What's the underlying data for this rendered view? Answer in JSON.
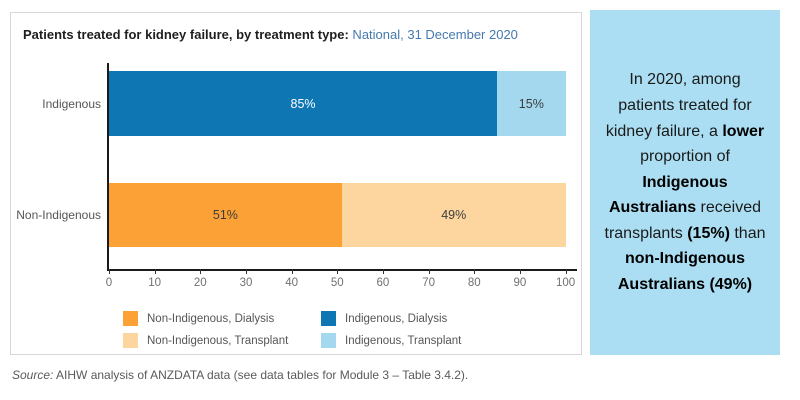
{
  "card": {
    "title": "Patients treated for kidney failure, by treatment type:",
    "title_period": " National, 31 December 2020"
  },
  "chart_data": {
    "type": "bar",
    "orientation": "horizontal",
    "stacked": true,
    "unit": "percent",
    "title": "Patients treated for kidney failure, by treatment type: National, 31 December 2020",
    "axis": {
      "min": 0,
      "max": 102.5,
      "ticks": [
        0,
        10,
        20,
        30,
        40,
        50,
        60,
        70,
        80,
        90,
        100
      ]
    },
    "grid": false,
    "categories": [
      "Indigenous",
      "Non-Indigenous"
    ],
    "rows": [
      {
        "category": "Indigenous",
        "segments": [
          {
            "series": "Indigenous, Dialysis",
            "value": 85,
            "label": "85%",
            "color": "#0d76b3",
            "label_color": "#ffffff"
          },
          {
            "series": "Indigenous, Transplant",
            "value": 15,
            "label": "15%",
            "color": "#a3d8ef",
            "label_color": "#3d3d3d"
          }
        ]
      },
      {
        "category": "Non-Indigenous",
        "segments": [
          {
            "series": "Non-Indigenous, Dialysis",
            "value": 51,
            "label": "51%",
            "color": "#fba135",
            "label_color": "#3d3d3d"
          },
          {
            "series": "Non-Indigenous, Transplant",
            "value": 49,
            "label": "49%",
            "color": "#fcd69e",
            "label_color": "#3d3d3d"
          }
        ]
      }
    ],
    "legend": {
      "position": "bottom",
      "columns": [
        [
          {
            "label": "Non-Indigenous, Dialysis",
            "color": "#fba135"
          },
          {
            "label": "Non-Indigenous, Transplant",
            "color": "#fcd69e"
          }
        ],
        [
          {
            "label": "Indigenous, Dialysis",
            "color": "#0d76b3"
          },
          {
            "label": "Indigenous, Transplant",
            "color": "#a3d8ef"
          }
        ]
      ]
    }
  },
  "insight_panel": {
    "background": "#abdef2",
    "text_runs": [
      {
        "text": "In 2020, among patients treated for kidney failure, a "
      },
      {
        "text": "lower",
        "bold": true
      },
      {
        "text": " proportion of "
      },
      {
        "text": "Indigenous Australians",
        "bold": true
      },
      {
        "text": " received transplants "
      },
      {
        "text": "(15%)",
        "bold": true
      },
      {
        "text": " than "
      },
      {
        "text": "non-Indigenous Australians (49%)",
        "bold": true
      }
    ]
  },
  "source": {
    "prefix": "Source:",
    "text": " AIHW analysis of ANZDATA data (see data tables for Module 3 – Table 3.4.2)."
  }
}
